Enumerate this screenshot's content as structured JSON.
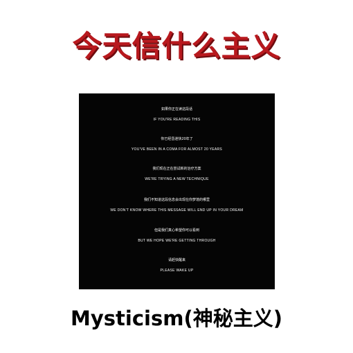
{
  "top_title": "今天信什么主义",
  "panel": {
    "lines": [
      {
        "zh": "如果你正在读这段话",
        "en": "IF YOU'RE READING THIS"
      },
      {
        "zh": "你已经昏迷快20年了",
        "en": "YOU'VE BEEN IN A COMA FOR ALMOST 20 YEARS"
      },
      {
        "zh": "我们现在正在尝试新的治疗方案",
        "en": "WE'RE TRYING A NEW TECHNIQUE"
      },
      {
        "zh": "我们不知道这段信息会出现在你梦境的哪里",
        "en": "WE DON'T KNOW WHERE THIS MESSAGE WILL END UP IN YOUR DREAM"
      },
      {
        "zh": "但是我们真心希望你可以看到",
        "en": "BUT WE HOPE WE'RE GETTING THROUGH"
      },
      {
        "zh": "请赶快醒来",
        "en": "PLEASE WAKE UP"
      }
    ]
  },
  "bottom_title": "Mysticism(神秘主义)",
  "colors": {
    "title_red": "#b8191e",
    "panel_bg": "#050505",
    "text_white": "#ffffff"
  }
}
